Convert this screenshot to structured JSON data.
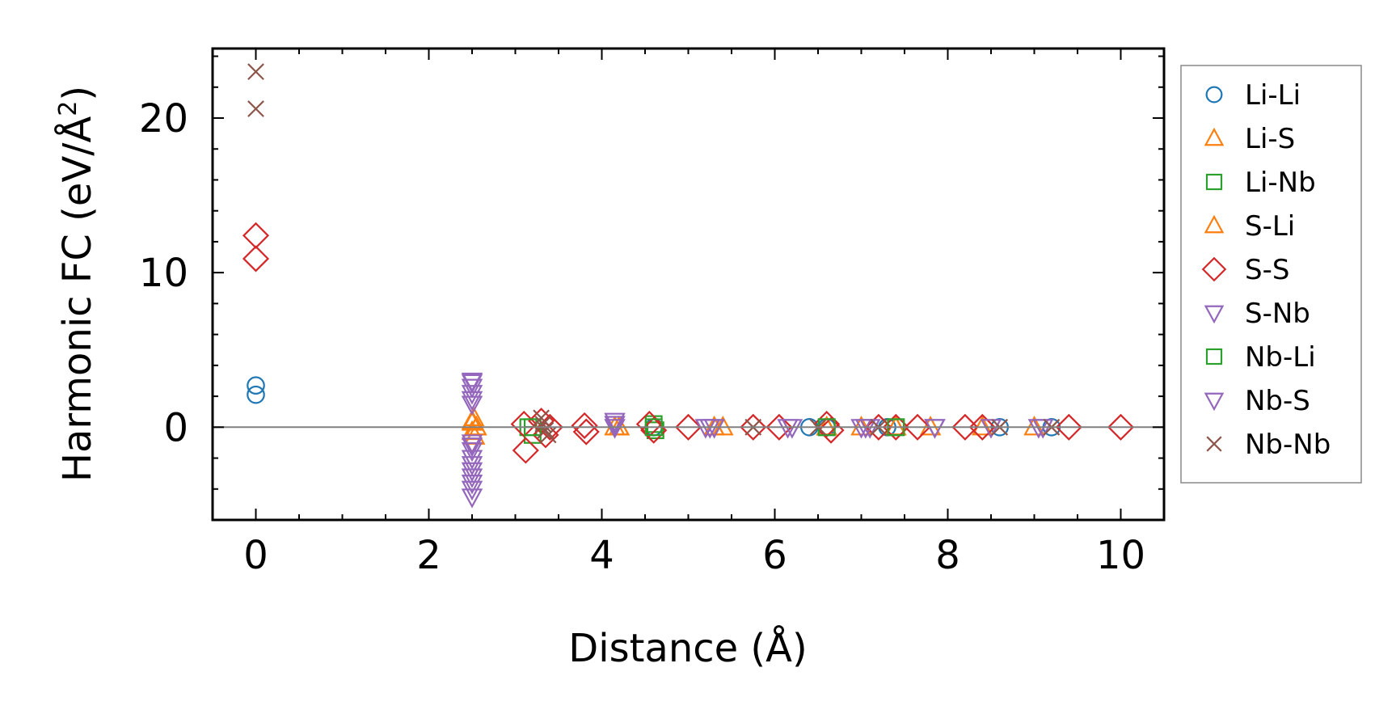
{
  "chart_data": {
    "type": "scatter",
    "xlabel": "Distance (Å)",
    "ylabel_main": "Harmonic FC (eV/Å",
    "ylabel_sup": "2",
    "ylabel_close": ")",
    "xlim": [
      -0.5,
      10.5
    ],
    "ylim": [
      -6,
      24.5
    ],
    "xticks": [
      0,
      2,
      4,
      6,
      8,
      10
    ],
    "xtick_labels": [
      "0",
      "2",
      "4",
      "6",
      "8",
      "10"
    ],
    "yticks": [
      0,
      10,
      20
    ],
    "ytick_labels": [
      "0",
      "10",
      "20"
    ],
    "zero_line": true,
    "grid": false,
    "legend_position": "outside-right",
    "series": [
      {
        "name": "Li-Li",
        "marker": "circle",
        "color": "#1f77b4",
        "x": [
          0,
          0,
          4.6,
          6.4,
          6.6,
          7.3,
          8.6,
          9.2
        ],
        "y": [
          2.7,
          2.1,
          0,
          0,
          0,
          0,
          0,
          0
        ]
      },
      {
        "name": "Li-S",
        "marker": "triangle-up",
        "color": "#ff7f0e",
        "x": [
          2.5,
          2.5,
          2.52,
          2.53,
          2.55,
          4.15,
          4.2,
          5.3,
          5.4,
          6.6,
          7.0,
          7.4,
          7.8,
          8.4,
          9.0
        ],
        "y": [
          0.3,
          -0.3,
          0.6,
          -0.6,
          0,
          0,
          0,
          0,
          0,
          0,
          0,
          0,
          0,
          0,
          0
        ]
      },
      {
        "name": "Li-Nb",
        "marker": "square",
        "color": "#2ca02c",
        "x": [
          3.15,
          3.2,
          4.6,
          4.62,
          6.6,
          7.4
        ],
        "y": [
          0,
          -0.5,
          0.2,
          -0.2,
          0,
          0
        ]
      },
      {
        "name": "S-Li",
        "marker": "triangle-up",
        "color": "#ff7f0e",
        "x": [
          2.5,
          2.55,
          4.2,
          5.3,
          6.6,
          7.4
        ],
        "y": [
          0.4,
          0,
          0,
          0,
          0,
          0
        ]
      },
      {
        "name": "S-S",
        "marker": "diamond",
        "color": "#d62728",
        "x": [
          0,
          0,
          3.1,
          3.12,
          3.3,
          3.35,
          3.4,
          3.8,
          3.82,
          4.55,
          4.6,
          5.0,
          5.75,
          6.05,
          6.6,
          6.65,
          7.2,
          7.4,
          7.65,
          8.2,
          8.4,
          9.4,
          10.0
        ],
        "y": [
          12.4,
          10.9,
          0.2,
          -1.5,
          0.4,
          -0.5,
          0,
          0.1,
          -0.3,
          0.2,
          -0.2,
          0,
          0,
          0,
          0.2,
          -0.2,
          0,
          0,
          0,
          0,
          0,
          0,
          0
        ]
      },
      {
        "name": "S-Nb",
        "marker": "triangle-down",
        "color": "#9467bd",
        "x": [
          2.5,
          2.5,
          2.5,
          2.5,
          2.5,
          2.5,
          2.5,
          2.5,
          2.5,
          2.5,
          2.5,
          2.5,
          2.5,
          2.5,
          4.15,
          4.15,
          5.2,
          5.3,
          6.2,
          7.0,
          7.1,
          7.85,
          8.5,
          9.05
        ],
        "y": [
          3.0,
          2.6,
          2.2,
          1.5,
          -1.0,
          -1.5,
          -2.0,
          -2.4,
          -2.8,
          -3.2,
          -3.6,
          -4.0,
          -4.5,
          -1.2,
          0.4,
          0,
          0,
          0,
          0,
          0,
          0,
          0,
          0,
          0
        ]
      },
      {
        "name": "Nb-Li",
        "marker": "square",
        "color": "#2ca02c",
        "x": [
          3.2,
          4.6,
          6.6,
          7.4
        ],
        "y": [
          0,
          0,
          0,
          0
        ]
      },
      {
        "name": "Nb-S",
        "marker": "triangle-down",
        "color": "#9467bd",
        "x": [
          2.5,
          2.5,
          4.15,
          5.25,
          6.15,
          7.05,
          7.85,
          9.1
        ],
        "y": [
          2.9,
          1.8,
          0.2,
          0,
          0,
          0,
          0,
          0
        ]
      },
      {
        "name": "Nb-Nb",
        "marker": "x",
        "color": "#8c564b",
        "x": [
          0,
          0,
          3.3,
          3.32,
          3.35,
          3.38,
          5.75,
          6.5,
          7.2,
          8.6,
          9.2
        ],
        "y": [
          23.0,
          20.6,
          0.6,
          0.2,
          -0.2,
          -0.5,
          0,
          0,
          0,
          0,
          0
        ]
      }
    ]
  }
}
